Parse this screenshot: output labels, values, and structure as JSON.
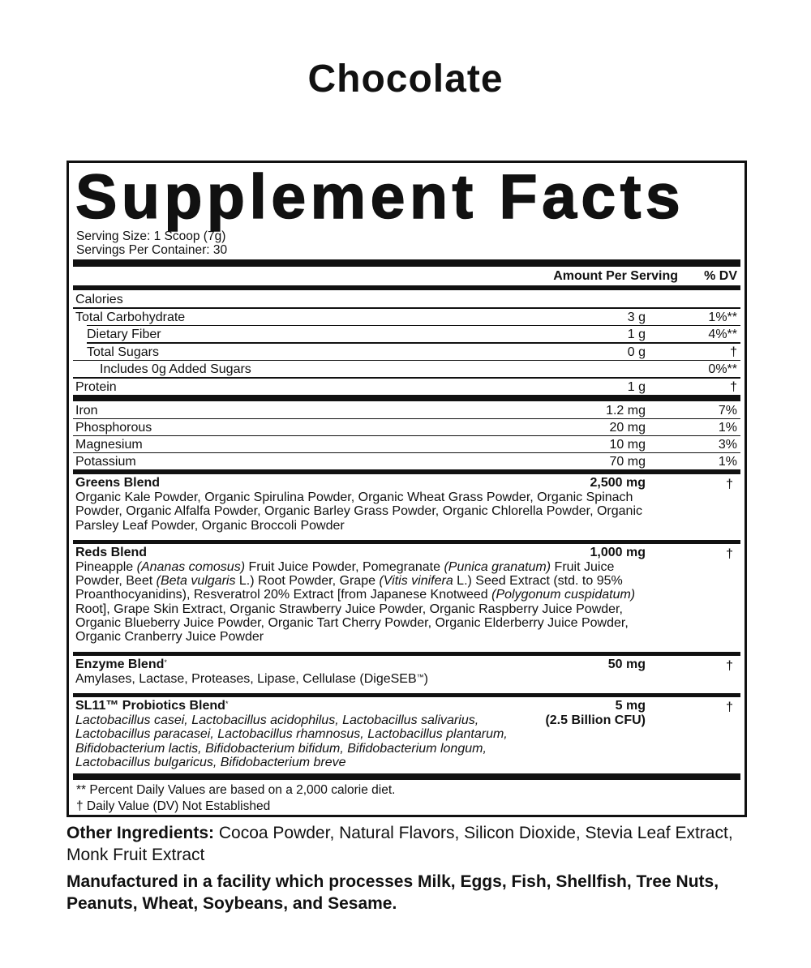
{
  "flavor": "Chocolate",
  "title": "Supplement Facts",
  "serving_size": "Serving Size: 1 Scoop (7g)",
  "servings_per_container": "Servings Per Container: 30",
  "header": {
    "amount": "Amount Per Serving",
    "dv": "% DV"
  },
  "nutrients": [
    {
      "name": "Calories",
      "amount": "",
      "dv": ""
    },
    {
      "name": "Total Carbohydrate",
      "amount": "3 g",
      "dv": "1%**"
    },
    {
      "name": "Dietary Fiber",
      "amount": "1 g",
      "dv": "4%**"
    },
    {
      "name": "Total Sugars",
      "amount": "0 g",
      "dv": "†"
    },
    {
      "name": "Includes 0g Added Sugars",
      "amount": "",
      "dv": "0%**"
    },
    {
      "name": "Protein",
      "amount": "1 g",
      "dv": "†"
    }
  ],
  "minerals": [
    {
      "name": "Iron",
      "amount": "1.2 mg",
      "dv": "7%"
    },
    {
      "name": "Phosphorous",
      "amount": "20 mg",
      "dv": "1%"
    },
    {
      "name": "Magnesium",
      "amount": "10 mg",
      "dv": "3%"
    },
    {
      "name": "Potassium",
      "amount": "70 mg",
      "dv": "1%"
    }
  ],
  "blends": [
    {
      "name": "Greens Blend",
      "mark": "",
      "amount": "2,500 mg",
      "amount2": "",
      "dv": "†",
      "lines": [
        [
          {
            "t": "Organic Kale Powder, Organic Spirulina Powder, Organic Wheat Grass Powder, Organic Spinach"
          }
        ],
        [
          {
            "t": "Powder, Organic Alfalfa Powder, Organic Barley Grass Powder, Organic Chlorella Powder, Organic"
          }
        ],
        [
          {
            "t": "Parsley Leaf Powder, Organic Broccoli Powder"
          }
        ]
      ]
    },
    {
      "name": "Reds Blend",
      "mark": "",
      "amount": "1,000 mg",
      "amount2": "",
      "dv": "†",
      "lines": [
        [
          {
            "t": "Pineapple "
          },
          {
            "t": "(Ananas comosus)",
            "i": true
          },
          {
            "t": " Fruit Juice Powder, Pomegranate "
          },
          {
            "t": "(Punica granatum)",
            "i": true
          },
          {
            "t": " Fruit Juice"
          }
        ],
        [
          {
            "t": "Powder, Beet "
          },
          {
            "t": "(Beta vulgaris",
            "i": true
          },
          {
            "t": " L.) Root Powder, Grape "
          },
          {
            "t": "(Vitis vinifera",
            "i": true
          },
          {
            "t": " L.) Seed Extract (std. to 95%"
          }
        ],
        [
          {
            "t": "Proanthocyanidins), Resveratrol 20% Extract [from Japanese Knotweed "
          },
          {
            "t": "(Polygonum cuspidatum)",
            "i": true
          }
        ],
        [
          {
            "t": "Root], Grape Skin Extract, Organic Strawberry Juice Powder, Organic Raspberry Juice Powder,"
          }
        ],
        [
          {
            "t": "Organic Blueberry Juice Powder, Organic Tart Cherry Powder, Organic Elderberry Juice Powder,"
          }
        ],
        [
          {
            "t": "Organic Cranberry Juice Powder"
          }
        ]
      ]
    },
    {
      "name": "Enzyme Blend",
      "mark": "*",
      "amount": "50 mg",
      "amount2": "",
      "dv": "†",
      "lines": [
        [
          {
            "t": "Amylases, Lactase, Proteases, Lipase, Cellulase (DigeSEB"
          },
          {
            "t": "™",
            "sup": true
          },
          {
            "t": ")"
          }
        ]
      ]
    },
    {
      "name": "SL11™ Probiotics Blend",
      "mark": "*",
      "amount": "5 mg",
      "amount2": "(2.5 Billion CFU)",
      "dv": "†",
      "lines": [
        [
          {
            "t": "Lactobacillus casei, Lactobacillus acidophilus, Lactobacillus salivarius,",
            "i": true
          }
        ],
        [
          {
            "t": "Lactobacillus paracasei, Lactobacillus rhamnosus, Lactobacillus plantarum,",
            "i": true
          }
        ],
        [
          {
            "t": "Bifidobacterium lactis, Bifidobacterium bifidum, Bifidobacterium longum,",
            "i": true
          }
        ],
        [
          {
            "t": "Lactobacillus bulgaricus, Bifidobacterium breve",
            "i": true
          }
        ]
      ]
    }
  ],
  "footnotes": [
    "** Percent Daily Values are based on a 2,000 calorie diet.",
    "† Daily Value (DV) Not Established"
  ],
  "other_ingredients": {
    "label": "Other Ingredients:",
    "text": " Cocoa Powder, Natural Flavors, Silicon Dioxide, Stevia Leaf Extract, Monk Fruit Extract"
  },
  "allergen": "Manufactured in a facility which processes Milk, Eggs, Fish, Shellfish, Tree Nuts, Peanuts, Wheat, Soybeans, and Sesame."
}
